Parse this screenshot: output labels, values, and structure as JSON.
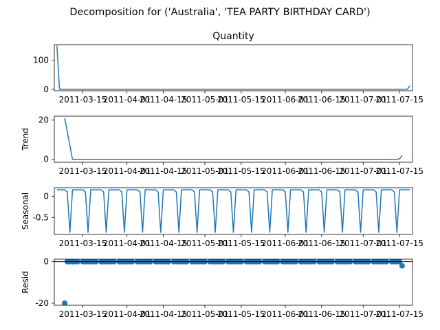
{
  "figure": {
    "suptitle": "Decomposition for ('Australia', 'TEA PARTY BIRTHDAY CARD')"
  },
  "colors": {
    "line": "#1f77b4",
    "marker": "#1f77b4",
    "axes": "#000000",
    "background": "#ffffff"
  },
  "chart_data": [
    {
      "type": "line",
      "title": "Quantity",
      "ylabel": "",
      "ylim": [
        -5,
        153
      ],
      "yticks": [
        0,
        100
      ],
      "grid": false,
      "x_tick_labels": [
        "2011-03-15",
        "2011-04-01",
        "2011-04-15",
        "2011-05-01",
        "2011-05-15",
        "2011-06-01",
        "2011-06-15",
        "2011-07-01",
        "2011-07-15"
      ],
      "series": [
        {
          "x": [
            "2011-03-05",
            "2011-03-06",
            "2011-03-20",
            "2011-04-10",
            "2011-05-01",
            "2011-05-20",
            "2011-06-10",
            "2011-07-01",
            "2011-07-17",
            "2011-07-18",
            "2011-07-19"
          ],
          "values": [
            150,
            0,
            0,
            0,
            0,
            0,
            0,
            0,
            0,
            0,
            12
          ]
        }
      ]
    },
    {
      "type": "line",
      "title": "",
      "ylabel": "Trend",
      "ylim": [
        -1.5,
        22
      ],
      "yticks": [
        0,
        20
      ],
      "grid": false,
      "x_tick_labels": [
        "2011-03-15",
        "2011-04-01",
        "2011-04-15",
        "2011-05-01",
        "2011-05-15",
        "2011-06-01",
        "2011-06-15",
        "2011-07-01",
        "2011-07-15"
      ],
      "series": [
        {
          "x": [
            "2011-03-08",
            "2011-03-11",
            "2011-03-25",
            "2011-04-15",
            "2011-05-10",
            "2011-06-05",
            "2011-06-30",
            "2011-07-14",
            "2011-07-15",
            "2011-07-16"
          ],
          "values": [
            21,
            0,
            0,
            0,
            0,
            0,
            0,
            0,
            0.2,
            2
          ]
        }
      ]
    },
    {
      "type": "line",
      "title": "",
      "ylabel": "Seasonal",
      "ylim": [
        -0.9,
        0.2
      ],
      "yticks": [
        0.0,
        -0.5
      ],
      "grid": false,
      "x_tick_labels": [
        "2011-03-15",
        "2011-04-01",
        "2011-04-15",
        "2011-05-01",
        "2011-05-15",
        "2011-06-01",
        "2011-06-15",
        "2011-07-01",
        "2011-07-15"
      ],
      "period_days": 7,
      "pattern": [
        0.15,
        0.15,
        0.15,
        0.15,
        0.1,
        -0.85,
        0.15
      ],
      "start": "2011-03-05",
      "end": "2011-07-19"
    },
    {
      "type": "scatter",
      "title": "",
      "ylabel": "Resid",
      "ylim": [
        -21,
        1.2
      ],
      "yticks": [
        0,
        -20
      ],
      "zero_line": true,
      "grid": false,
      "x_tick_labels": [
        "2011-03-15",
        "2011-04-01",
        "2011-04-15",
        "2011-05-01",
        "2011-05-15",
        "2011-06-01",
        "2011-06-15",
        "2011-07-01",
        "2011-07-15"
      ],
      "outliers": [
        {
          "x": "2011-03-08",
          "y": -20
        },
        {
          "x": "2011-07-16",
          "y": -2
        }
      ],
      "near_zero_points": {
        "start": "2011-03-09",
        "end": "2011-07-15",
        "skip_weekday_index": 5,
        "y": 0
      }
    }
  ]
}
